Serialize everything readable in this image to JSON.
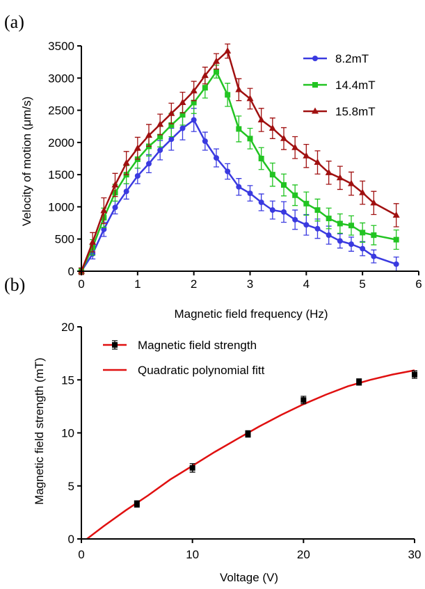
{
  "chart_data": [
    {
      "panel_label": "(a)",
      "type": "line",
      "xlabel": "Magnetic field frequency (Hz)",
      "ylabel": "Velocity of motion (μm/s)",
      "xlim": [
        0,
        6
      ],
      "ylim": [
        0,
        3500
      ],
      "xticks": [
        "0",
        "1",
        "2",
        "3",
        "4",
        "5",
        "6"
      ],
      "yticks": [
        "0",
        "500",
        "1000",
        "1500",
        "2000",
        "2500",
        "3000",
        "3500"
      ],
      "grid": false,
      "legend_position": "top-right",
      "series": [
        {
          "name": "8.2mT",
          "color": "#3a3ae0",
          "marker": "circle",
          "x": [
            0,
            0.2,
            0.4,
            0.6,
            0.8,
            1.0,
            1.2,
            1.4,
            1.6,
            1.8,
            2.0,
            2.2,
            2.4,
            2.6,
            2.8,
            3.0,
            3.2,
            3.4,
            3.6,
            3.8,
            4.0,
            4.2,
            4.4,
            4.6,
            4.8,
            5.0,
            5.2,
            5.6
          ],
          "y": [
            0,
            270,
            650,
            990,
            1240,
            1480,
            1670,
            1880,
            2050,
            2220,
            2350,
            2020,
            1760,
            1550,
            1310,
            1210,
            1070,
            950,
            920,
            800,
            720,
            660,
            560,
            470,
            420,
            350,
            230,
            110
          ],
          "err": [
            50,
            80,
            110,
            100,
            120,
            120,
            140,
            150,
            170,
            180,
            180,
            140,
            140,
            120,
            130,
            120,
            130,
            140,
            160,
            150,
            160,
            150,
            140,
            110,
            110,
            110,
            100,
            110
          ]
        },
        {
          "name": "14.4mT",
          "color": "#22c422",
          "marker": "square",
          "x": [
            0,
            0.2,
            0.4,
            0.6,
            0.8,
            1.0,
            1.2,
            1.4,
            1.6,
            1.8,
            2.0,
            2.2,
            2.4,
            2.6,
            2.8,
            3.0,
            3.2,
            3.4,
            3.6,
            3.8,
            4.0,
            4.2,
            4.4,
            4.6,
            4.8,
            5.0,
            5.2,
            5.6
          ],
          "y": [
            0,
            370,
            830,
            1220,
            1500,
            1740,
            1940,
            2090,
            2270,
            2430,
            2620,
            2850,
            3100,
            2740,
            2210,
            2060,
            1750,
            1500,
            1340,
            1180,
            1050,
            950,
            820,
            740,
            710,
            600,
            560,
            490
          ],
          "err": [
            50,
            120,
            150,
            130,
            140,
            140,
            150,
            160,
            180,
            160,
            170,
            160,
            100,
            180,
            200,
            160,
            170,
            180,
            170,
            160,
            180,
            170,
            160,
            150,
            150,
            150,
            150,
            150
          ]
        },
        {
          "name": "15.8mT",
          "color": "#a01010",
          "marker": "triangle",
          "x": [
            0,
            0.2,
            0.4,
            0.6,
            0.8,
            1.0,
            1.2,
            1.4,
            1.6,
            1.8,
            2.0,
            2.2,
            2.4,
            2.6,
            2.8,
            3.0,
            3.2,
            3.4,
            3.6,
            3.8,
            4.0,
            4.2,
            4.4,
            4.6,
            4.8,
            5.0,
            5.2,
            5.6
          ],
          "y": [
            0,
            450,
            940,
            1340,
            1680,
            1910,
            2110,
            2280,
            2450,
            2620,
            2800,
            3040,
            3260,
            3420,
            2820,
            2680,
            2350,
            2220,
            2060,
            1920,
            1790,
            1690,
            1530,
            1450,
            1360,
            1220,
            1060,
            870
          ],
          "err": [
            50,
            150,
            200,
            180,
            180,
            170,
            170,
            160,
            160,
            160,
            150,
            130,
            120,
            110,
            170,
            160,
            180,
            160,
            170,
            170,
            180,
            180,
            180,
            180,
            180,
            180,
            180,
            180
          ]
        }
      ]
    },
    {
      "panel_label": "(b)",
      "type": "scatter",
      "xlabel": "Voltage (V)",
      "ylabel": "Magnetic field strength (mT)",
      "xlim": [
        0,
        30
      ],
      "ylim": [
        0,
        20
      ],
      "xticks": [
        "0",
        "10",
        "20",
        "30"
      ],
      "yticks": [
        "0",
        "5",
        "10",
        "15",
        "20"
      ],
      "grid": false,
      "legend_position": "top-left",
      "series": [
        {
          "name": "Magnetic field strength",
          "color": "#000000",
          "marker": "square",
          "x": [
            5,
            10,
            15,
            20,
            25,
            30
          ],
          "y": [
            3.3,
            6.7,
            9.9,
            13.1,
            14.8,
            15.5
          ],
          "err": [
            0.3,
            0.4,
            0.3,
            0.35,
            0.3,
            0.35
          ]
        },
        {
          "name": "Quadratic polynomial fitt",
          "color": "#e01010",
          "type": "line",
          "x": [
            0.5,
            2,
            4,
            6,
            8,
            10,
            12,
            14,
            16,
            18,
            20,
            22,
            24,
            26,
            28,
            30
          ],
          "y": [
            0,
            1.2,
            2.7,
            4.1,
            5.6,
            6.9,
            8.2,
            9.4,
            10.6,
            11.7,
            12.7,
            13.6,
            14.4,
            15.0,
            15.5,
            15.9
          ]
        }
      ]
    }
  ]
}
